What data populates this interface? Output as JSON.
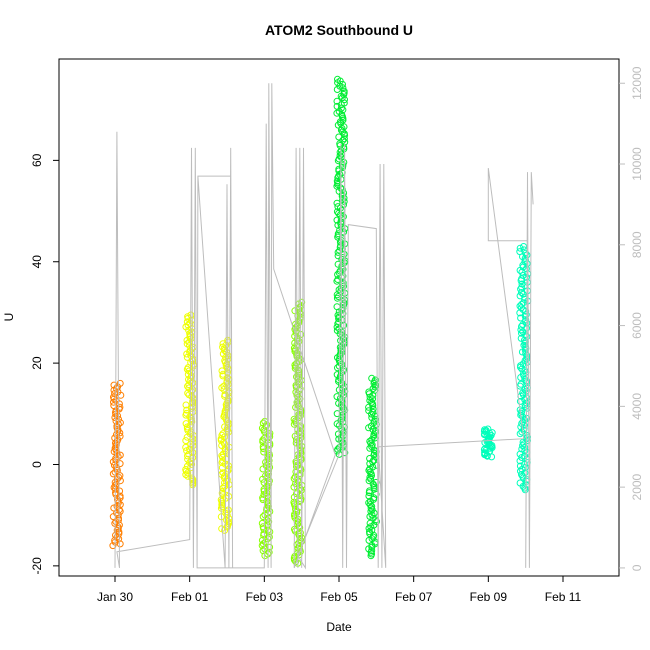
{
  "chart_data": {
    "type": "scatter",
    "title": "ATOM2 Southbound U",
    "xlabel": "Date",
    "ylabel": "U",
    "x_ticks": [
      "Jan 30",
      "Feb 01",
      "Feb 03",
      "Feb 05",
      "Feb 07",
      "Feb 09",
      "Feb 11"
    ],
    "x_tick_days": [
      30,
      32,
      34,
      36,
      38,
      40,
      42
    ],
    "xlim_days": [
      28.5,
      43.5
    ],
    "ylim": [
      -22,
      80
    ],
    "y_ticks": [
      -20,
      0,
      20,
      40,
      60
    ],
    "secondary_y": {
      "ticks": [
        0,
        2000,
        4000,
        6000,
        8000,
        10000,
        12000
      ],
      "lim": [
        -200,
        12600
      ],
      "color": "#bdbdbd"
    },
    "grid": false,
    "series": [
      {
        "color": "#ff7f00",
        "day": 30.05,
        "clusters": [
          [
            30.05,
            -16,
            16
          ]
        ]
      },
      {
        "color": "#eeff00",
        "day": 32.0,
        "clusters": [
          [
            32.0,
            -4,
            29.5
          ],
          [
            32.95,
            -13,
            24.5
          ]
        ]
      },
      {
        "color": "#88ff00",
        "day": 34.0,
        "clusters": [
          [
            34.05,
            -18,
            8.5
          ],
          [
            34.9,
            -19.5,
            32
          ]
        ]
      },
      {
        "color": "#00ee33",
        "day": 36.0,
        "clusters": [
          [
            36.05,
            2,
            76
          ],
          [
            36.9,
            -18,
            17
          ]
        ]
      },
      {
        "color": "#00ffbb",
        "day": 41.0,
        "clusters": [
          [
            40.0,
            1.5,
            7
          ],
          [
            40.95,
            -5,
            43
          ]
        ]
      }
    ],
    "secondary_line": {
      "color": "#bdbdbd",
      "points": [
        [
          30.0,
          0
        ],
        [
          30.05,
          10800
        ],
        [
          30.12,
          0
        ],
        [
          30.05,
          400
        ],
        [
          32.0,
          700
        ],
        [
          32.05,
          10400
        ],
        [
          32.1,
          0
        ],
        [
          32.15,
          10400
        ],
        [
          32.2,
          0
        ],
        [
          32.22,
          9700
        ],
        [
          32.95,
          0
        ],
        [
          33.0,
          9500
        ],
        [
          33.05,
          0
        ],
        [
          33.1,
          10400
        ],
        [
          33.15,
          0
        ],
        [
          33.1,
          9700
        ],
        [
          32.22,
          9700
        ],
        [
          32.2,
          0
        ],
        [
          34.0,
          0
        ],
        [
          34.05,
          11000
        ],
        [
          34.1,
          0
        ],
        [
          34.12,
          12000
        ],
        [
          34.18,
          0
        ],
        [
          34.2,
          12000
        ],
        [
          34.25,
          7400
        ],
        [
          35.9,
          2800
        ],
        [
          34.8,
          0
        ],
        [
          34.85,
          10400
        ],
        [
          34.9,
          0
        ],
        [
          34.95,
          10400
        ],
        [
          35.0,
          0
        ],
        [
          35.05,
          10400
        ],
        [
          35.1,
          0
        ],
        [
          34.9,
          300
        ],
        [
          36.0,
          2800
        ],
        [
          36.05,
          10500
        ],
        [
          36.1,
          0
        ],
        [
          36.15,
          10500
        ],
        [
          36.2,
          0
        ],
        [
          36.25,
          8500
        ],
        [
          37.0,
          8400
        ],
        [
          37.05,
          0
        ],
        [
          37.1,
          10000
        ],
        [
          37.15,
          0
        ],
        [
          37.2,
          10000
        ],
        [
          37.25,
          0
        ],
        [
          37.05,
          3000
        ],
        [
          40.95,
          3200
        ],
        [
          40.0,
          9900
        ],
        [
          40.0,
          8100
        ],
        [
          41.05,
          8100
        ],
        [
          41.0,
          0
        ],
        [
          41.05,
          9800
        ],
        [
          41.1,
          0
        ],
        [
          41.15,
          9800
        ],
        [
          41.2,
          9000
        ]
      ]
    }
  }
}
